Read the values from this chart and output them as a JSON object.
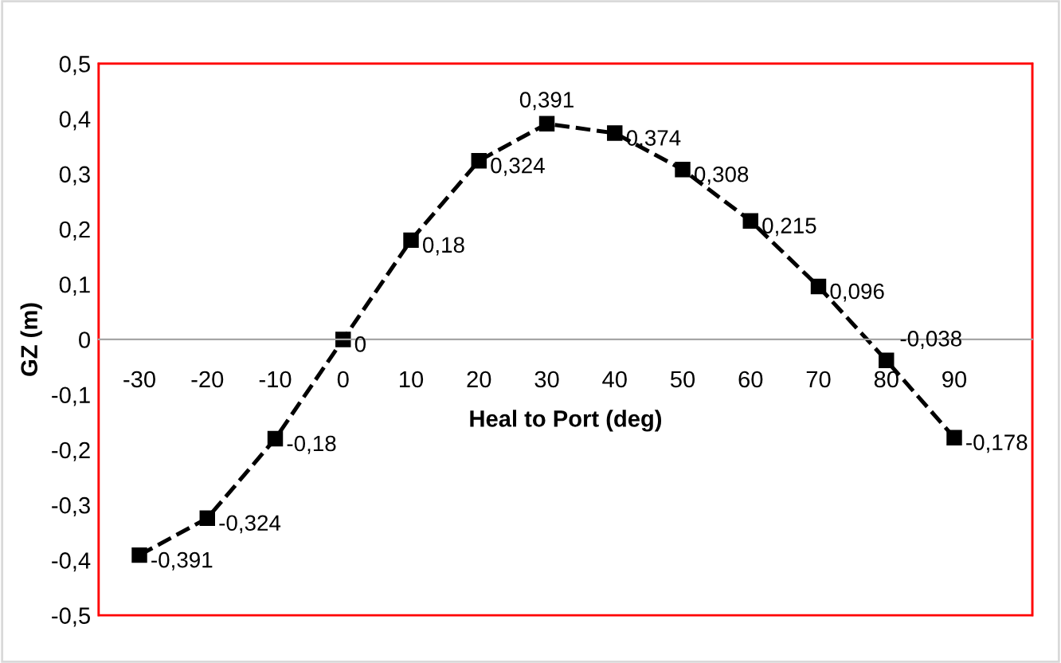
{
  "chart_data": {
    "type": "line",
    "xlabel": "Heal to Port (deg)",
    "ylabel": "GZ (m)",
    "categories": [
      "-30",
      "-20",
      "-10",
      "0",
      "10",
      "20",
      "30",
      "40",
      "50",
      "60",
      "70",
      "80",
      "90"
    ],
    "series": [
      {
        "color": "#000000",
        "values": [
          -0.391,
          -0.324,
          -0.18,
          0,
          0.18,
          0.324,
          0.391,
          0.374,
          0.308,
          0.215,
          0.096,
          -0.038,
          -0.178
        ],
        "value_labels": [
          "-0,391",
          "-0,324",
          "-0,18",
          "0",
          "0,18",
          "0,324",
          "0,391",
          "0,374",
          "0,308",
          "0,215",
          "0,096",
          "-0,038",
          "-0,178"
        ]
      }
    ],
    "ylim": [
      -0.5,
      0.5
    ],
    "yticks": [
      {
        "value": -0.5,
        "label": "-0,5"
      },
      {
        "value": -0.4,
        "label": "-0,4"
      },
      {
        "value": -0.3,
        "label": "-0,3"
      },
      {
        "value": -0.2,
        "label": "-0,2"
      },
      {
        "value": -0.1,
        "label": "-0,1"
      },
      0,
      {
        "value": 0.1,
        "label": "0,1"
      },
      {
        "value": 0.2,
        "label": "0,2"
      },
      {
        "value": 0.3,
        "label": "0,3"
      },
      {
        "value": 0.4,
        "label": "0,4"
      },
      {
        "value": 0.5,
        "label": "0,5"
      }
    ],
    "marker": "square",
    "line_style": "dashed",
    "grid": false,
    "legend": false
  }
}
